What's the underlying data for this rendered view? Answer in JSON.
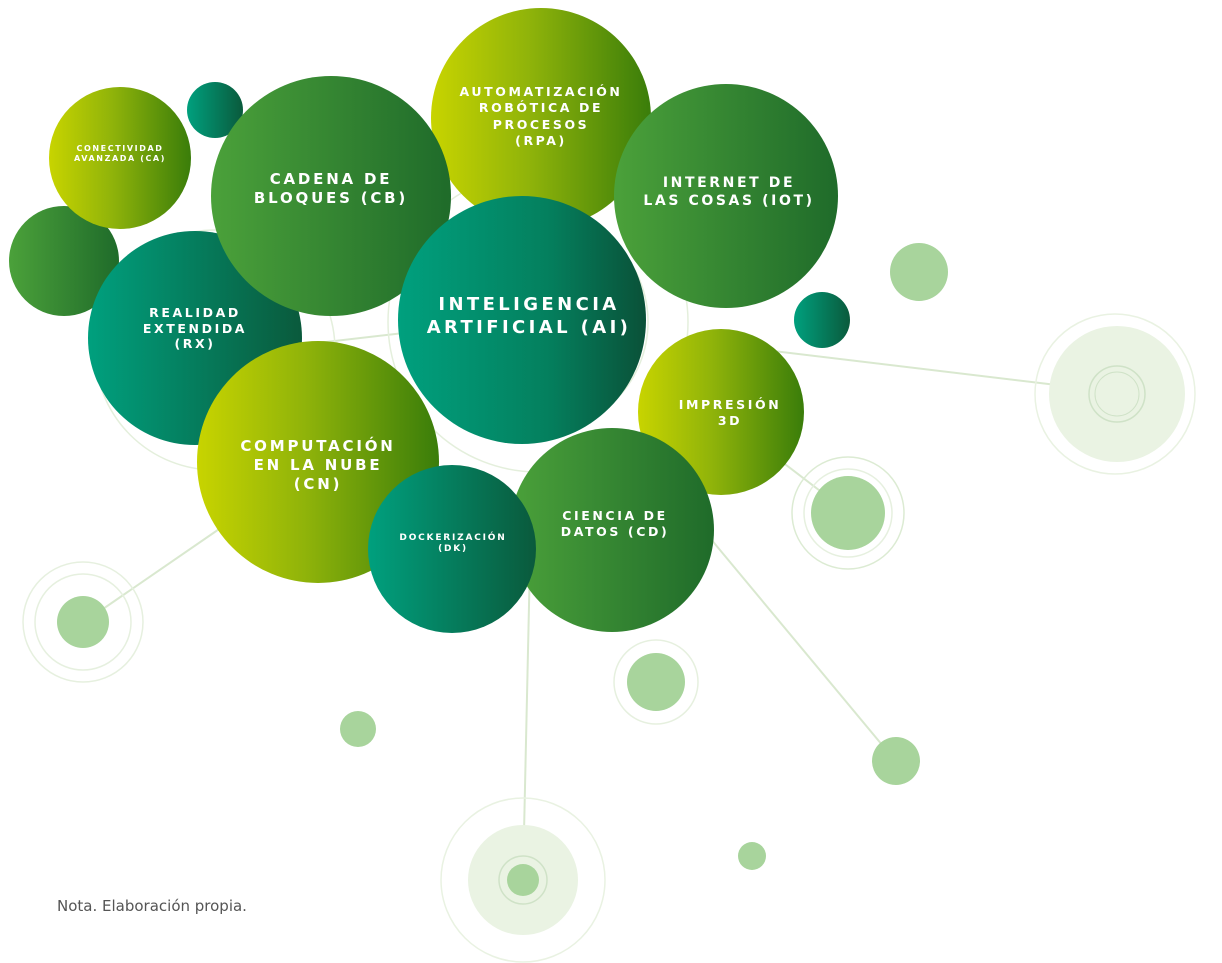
{
  "colors": {
    "lime_start": "#c8d400",
    "lime_end": "#3a7d0a",
    "green_start": "#4ba13a",
    "green_end": "#1f6b2a",
    "teal_start": "#00a07e",
    "teal_end": "#0a5a3c",
    "pale_dot": "#a8d49c",
    "halo": "#eaf3e3",
    "ring": "#cfe2c7",
    "line": "#d9e8cf",
    "label": "#ffffff",
    "note": "#555555"
  },
  "nodes": {
    "ca": {
      "label": "CONECTIVIDAD\nAVANZADA (CA)"
    },
    "cb": {
      "label": "CADENA DE\nBLOQUES (CB)"
    },
    "rpa": {
      "label": "AUTOMATIZACIÓN\nROBÓTICA DE\nPROCESOS\n(RPA)"
    },
    "iot": {
      "label": "INTERNET DE\nLAS COSAS (IOT)"
    },
    "rx": {
      "label": "REALIDAD\nEXTENDIDA\n(RX)"
    },
    "ai": {
      "label": "INTELIGENCIA\nARTIFICIAL (AI)"
    },
    "i3d": {
      "label": "IMPRESIÓN\n3D"
    },
    "cn": {
      "label": "COMPUTACIÓN\nEN LA NUBE\n(CN)"
    },
    "cd": {
      "label": "CIENCIA DE\nDATOS (CD)"
    },
    "dk": {
      "label": "DOCKERIZACIÓN\n(DK)"
    }
  },
  "note": "Nota. Elaboración propia."
}
